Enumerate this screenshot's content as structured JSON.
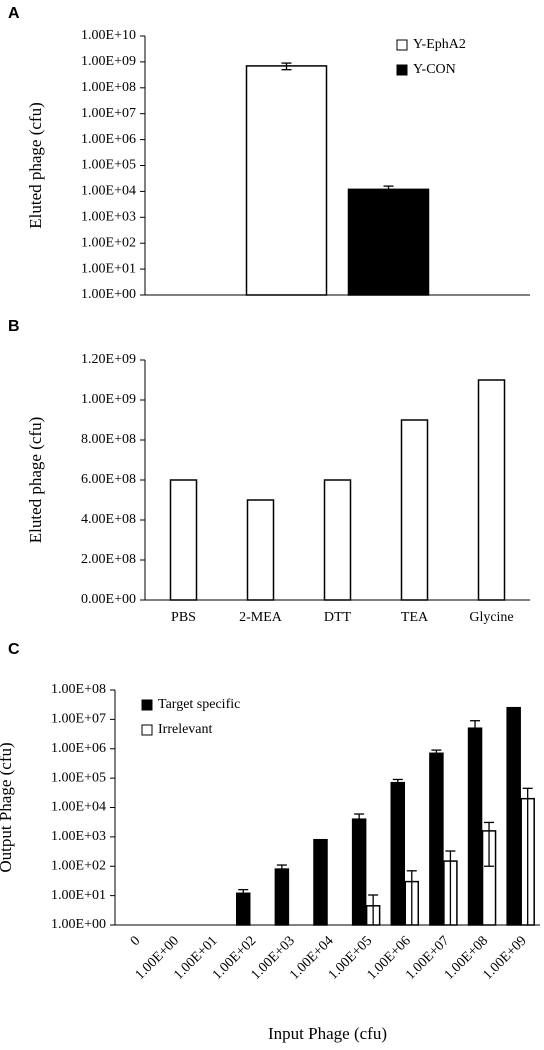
{
  "chart_data": [
    {
      "type": "bar",
      "panel": "A",
      "ylabel": "Eluted phage (cfu)",
      "log_scale": true,
      "legend": "upper right",
      "categories": [
        null
      ],
      "series": [
        {
          "name": "Y-EphA2",
          "color": "#ffffff",
          "values": [
            700000000
          ],
          "errors": [
            200000000
          ]
        },
        {
          "name": "Y-CON",
          "color": "#000000",
          "values": [
            12000
          ],
          "errors": [
            4000
          ]
        }
      ],
      "ylim": [
        1,
        10000000000
      ],
      "yticks": [
        {
          "value": 1,
          "label": "1.00E+00"
        },
        {
          "value": 10,
          "label": "1.00E+01"
        },
        {
          "value": 100,
          "label": "1.00E+02"
        },
        {
          "value": 1000,
          "label": "1.00E+03"
        },
        {
          "value": 10000,
          "label": "1.00E+04"
        },
        {
          "value": 100000,
          "label": "1.00E+05"
        },
        {
          "value": 1000000,
          "label": "1.00E+06"
        },
        {
          "value": 10000000,
          "label": "1.00E+07"
        },
        {
          "value": 100000000,
          "label": "1.00E+08"
        },
        {
          "value": 1000000000,
          "label": "1.00E+09"
        },
        {
          "value": 10000000000,
          "label": "1.00E+10"
        }
      ]
    },
    {
      "type": "bar",
      "panel": "B",
      "ylabel": "Eluted phage (cfu)",
      "log_scale": false,
      "categories": [
        "PBS",
        "2-MEA",
        "DTT",
        "TEA",
        "Glycine"
      ],
      "values": [
        600000000,
        500000000,
        600000000,
        900000000,
        1100000000
      ],
      "color": "#ffffff",
      "ylim": [
        0,
        1200000000
      ],
      "yticks": [
        {
          "value": 0,
          "label": "0.00E+00"
        },
        {
          "value": 200000000,
          "label": "2.00E+08"
        },
        {
          "value": 400000000,
          "label": "4.00E+08"
        },
        {
          "value": 600000000,
          "label": "6.00E+08"
        },
        {
          "value": 800000000,
          "label": "8.00E+08"
        },
        {
          "value": 1000000000,
          "label": "1.00E+09"
        },
        {
          "value": 1200000000,
          "label": "1.20E+09"
        }
      ]
    },
    {
      "type": "bar",
      "panel": "C",
      "xlabel": "Input Phage (cfu)",
      "ylabel": "Output Phage (cfu)",
      "log_scale": true,
      "legend": "upper left",
      "categories": [
        "0",
        "1.00E+00",
        "1.00E+01",
        "1.00E+02",
        "1.00E+03",
        "1.00E+04",
        "1.00E+05",
        "1.00E+06",
        "1.00E+07",
        "1.00E+08",
        "1.00E+09"
      ],
      "series": [
        {
          "name": "Target specific",
          "color": "#000000",
          "values": [
            null,
            null,
            null,
            12,
            80,
            800,
            4000,
            70000,
            700000,
            5000000,
            25000000
          ],
          "errors": [
            null,
            null,
            null,
            4,
            30,
            0,
            2000,
            20000,
            200000,
            4000000,
            0
          ]
        },
        {
          "name": "Irrelevant",
          "color": "#ffffff",
          "values": [
            null,
            null,
            null,
            null,
            null,
            null,
            4.5,
            30,
            150,
            1600,
            20000
          ],
          "errors": [
            null,
            null,
            null,
            null,
            null,
            null,
            6,
            40,
            180,
            1500,
            25000
          ]
        }
      ],
      "ylim": [
        1,
        100000000
      ],
      "yticks": [
        {
          "value": 1,
          "label": "1.00E+00"
        },
        {
          "value": 10,
          "label": "1.00E+01"
        },
        {
          "value": 100,
          "label": "1.00E+02"
        },
        {
          "value": 1000,
          "label": "1.00E+03"
        },
        {
          "value": 10000,
          "label": "1.00E+04"
        },
        {
          "value": 100000,
          "label": "1.00E+05"
        },
        {
          "value": 1000000,
          "label": "1.00E+06"
        },
        {
          "value": 10000000,
          "label": "1.00E+07"
        },
        {
          "value": 100000000,
          "label": "1.00E+08"
        }
      ]
    }
  ]
}
